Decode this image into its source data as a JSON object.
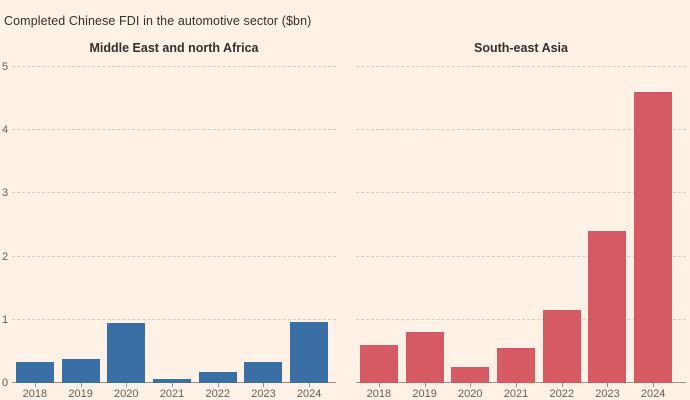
{
  "chart_data": {
    "type": "bar",
    "title": "Completed Chinese FDI in the automotive sector ($bn)",
    "categories": [
      "2018",
      "2019",
      "2020",
      "2021",
      "2022",
      "2023",
      "2024"
    ],
    "panels": [
      {
        "title": "Middle East and north Africa",
        "color": "#3a6fa5",
        "values": [
          0.33,
          0.38,
          0.95,
          0.06,
          0.18,
          0.33,
          0.97
        ]
      },
      {
        "title": "South-east Asia",
        "color": "#d65a64",
        "values": [
          0.6,
          0.8,
          0.25,
          0.55,
          1.15,
          2.4,
          4.6
        ]
      }
    ],
    "xlabel": "",
    "ylabel": "",
    "ylim": [
      0,
      5
    ],
    "yticks": [
      0,
      1,
      2,
      3,
      4,
      5
    ],
    "grid": "horizontal-dashed",
    "legend": "none",
    "colors": {
      "background": "#fff1e5",
      "title_text": "#33302e",
      "axis_text": "#66605c",
      "gridline": "#d8cabb",
      "axis_line": "#9d9187"
    }
  }
}
